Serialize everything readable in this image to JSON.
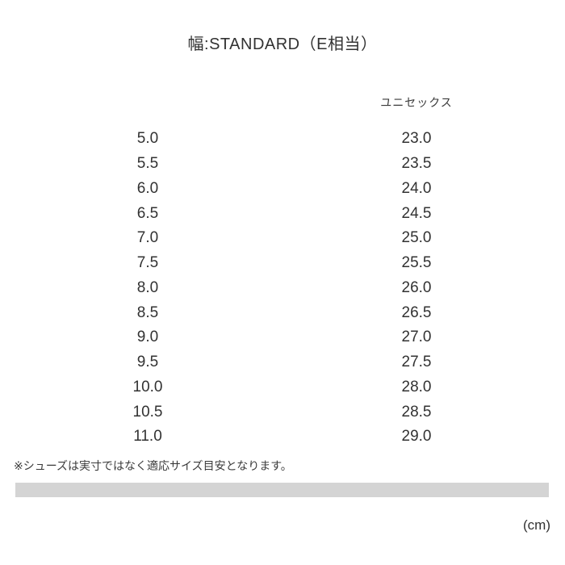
{
  "chart_data": {
    "type": "table",
    "title": "幅:STANDARD（E相当）",
    "column_header": "ユニセックス",
    "columns": [
      "",
      "ユニセックス"
    ],
    "rows": [
      [
        "5.0",
        "23.0"
      ],
      [
        "5.5",
        "23.5"
      ],
      [
        "6.0",
        "24.0"
      ],
      [
        "6.5",
        "24.5"
      ],
      [
        "7.0",
        "25.0"
      ],
      [
        "7.5",
        "25.5"
      ],
      [
        "8.0",
        "26.0"
      ],
      [
        "8.5",
        "26.5"
      ],
      [
        "9.0",
        "27.0"
      ],
      [
        "9.5",
        "27.5"
      ],
      [
        "10.0",
        "28.0"
      ],
      [
        "10.5",
        "28.5"
      ],
      [
        "11.0",
        "29.0"
      ]
    ],
    "note": "※シューズは実寸ではなく適応サイズ目安となります。",
    "unit": "(cm)"
  },
  "colors": {
    "background": "#ffffff",
    "text": "#323232",
    "divider_bar": "#d4d4d4"
  }
}
